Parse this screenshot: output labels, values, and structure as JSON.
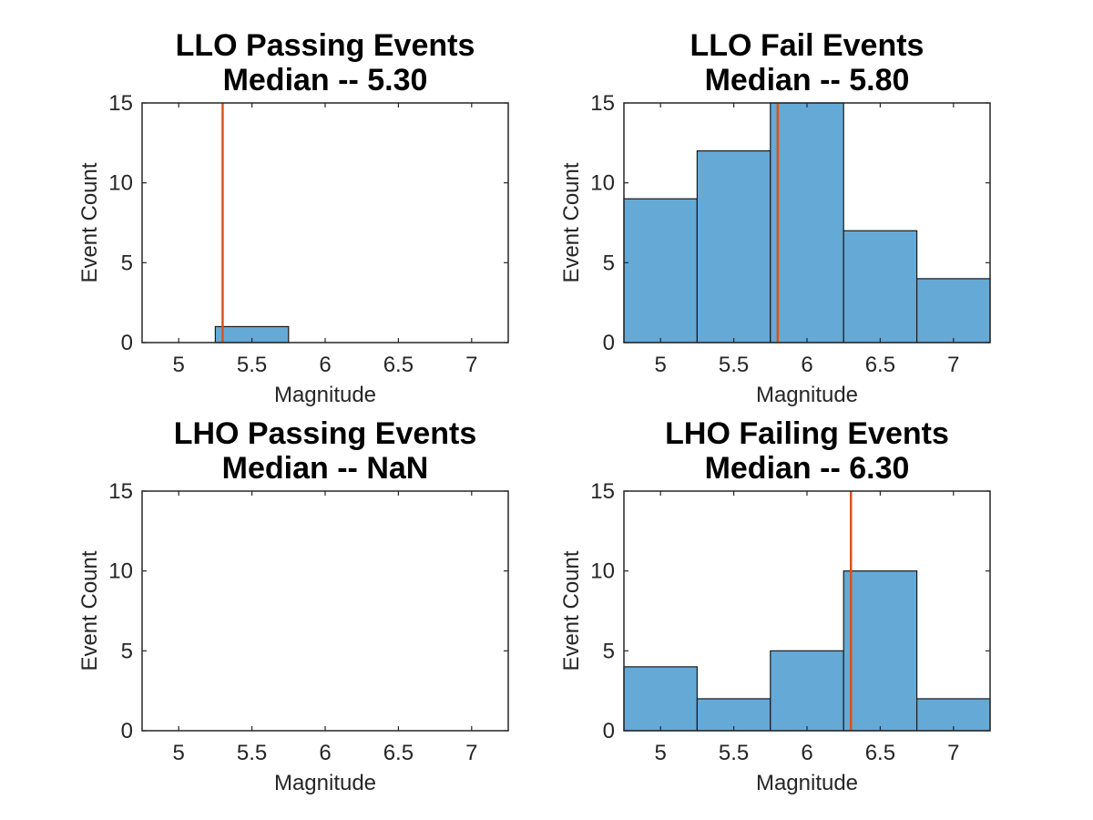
{
  "chart_data": [
    {
      "type": "bar",
      "title": [
        "LLO Passing Events",
        "Median -- 5.30"
      ],
      "xlabel": "Magnitude",
      "ylabel": "Event Count",
      "xlim": [
        4.75,
        7.25
      ],
      "ylim": [
        0,
        15
      ],
      "xticks": [
        "5",
        "5.5",
        "6",
        "6.5",
        "7"
      ],
      "yticks": [
        "0",
        "5",
        "10",
        "15"
      ],
      "bin_width": 0.5,
      "bins": [
        {
          "x": 5.5,
          "count": 1
        }
      ],
      "median": 5.3,
      "bar_color": "#65a9d7",
      "median_color": "#d95319"
    },
    {
      "type": "bar",
      "title": [
        "LLO Fail Events",
        "Median -- 5.80"
      ],
      "xlabel": "Magnitude",
      "ylabel": "Event Count",
      "xlim": [
        4.75,
        7.25
      ],
      "ylim": [
        0,
        15
      ],
      "xticks": [
        "5",
        "5.5",
        "6",
        "6.5",
        "7"
      ],
      "yticks": [
        "0",
        "5",
        "10",
        "15"
      ],
      "bin_width": 0.5,
      "bins": [
        {
          "x": 5.0,
          "count": 9
        },
        {
          "x": 5.5,
          "count": 12
        },
        {
          "x": 6.0,
          "count": 15
        },
        {
          "x": 6.5,
          "count": 7
        },
        {
          "x": 7.0,
          "count": 4
        }
      ],
      "median": 5.8,
      "bar_color": "#65a9d7",
      "median_color": "#d95319"
    },
    {
      "type": "bar",
      "title": [
        "LHO Passing Events",
        "Median -- NaN"
      ],
      "xlabel": "Magnitude",
      "ylabel": "Event Count",
      "xlim": [
        4.75,
        7.25
      ],
      "ylim": [
        0,
        15
      ],
      "xticks": [
        "5",
        "5.5",
        "6",
        "6.5",
        "7"
      ],
      "yticks": [
        "0",
        "5",
        "10",
        "15"
      ],
      "bin_width": 0.5,
      "bins": [],
      "median": null,
      "bar_color": "#65a9d7",
      "median_color": "#d95319"
    },
    {
      "type": "bar",
      "title": [
        "LHO Failing Events",
        "Median -- 6.30"
      ],
      "xlabel": "Magnitude",
      "ylabel": "Event Count",
      "xlim": [
        4.75,
        7.25
      ],
      "ylim": [
        0,
        15
      ],
      "xticks": [
        "5",
        "5.5",
        "6",
        "6.5",
        "7"
      ],
      "yticks": [
        "0",
        "5",
        "10",
        "15"
      ],
      "bin_width": 0.5,
      "bins": [
        {
          "x": 5.0,
          "count": 4
        },
        {
          "x": 5.5,
          "count": 2
        },
        {
          "x": 6.0,
          "count": 5
        },
        {
          "x": 6.5,
          "count": 10
        },
        {
          "x": 7.0,
          "count": 2
        }
      ],
      "median": 6.3,
      "bar_color": "#65a9d7",
      "median_color": "#d95319"
    }
  ]
}
